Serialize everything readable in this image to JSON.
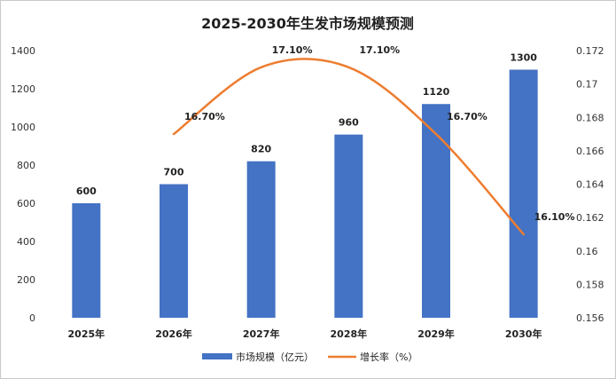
{
  "chart_data": {
    "type": "bar",
    "title": "2025-2030年生发市场规模预测",
    "categories": [
      "2025年",
      "2026年",
      "2027年",
      "2028年",
      "2029年",
      "2030年"
    ],
    "series": [
      {
        "name": "市场规模（亿元）",
        "type": "bar",
        "axis": "left",
        "values": [
          600,
          700,
          820,
          960,
          1120,
          1300
        ],
        "labels": [
          "600",
          "700",
          "820",
          "960",
          "1120",
          "1300"
        ]
      },
      {
        "name": "增长率（%）",
        "type": "line",
        "axis": "right",
        "values": [
          null,
          0.167,
          0.171,
          0.171,
          0.167,
          0.161
        ],
        "labels": [
          "",
          "16.70%",
          "17.10%",
          "17.10%",
          "16.70%",
          "16.10%"
        ]
      }
    ],
    "y_left": {
      "lim": [
        0,
        1400
      ],
      "ticks": [
        "0",
        "200",
        "400",
        "600",
        "800",
        "1000",
        "1200",
        "1400"
      ]
    },
    "y_right": {
      "lim": [
        0.156,
        0.172
      ],
      "ticks": [
        "0.156",
        "0.158",
        "0.16",
        "0.162",
        "0.164",
        "0.166",
        "0.168",
        "0.17",
        "0.172"
      ]
    },
    "grid": false,
    "legend": "bottom",
    "colors": {
      "bar": "#4472C4",
      "line": "#ED7D31"
    }
  }
}
